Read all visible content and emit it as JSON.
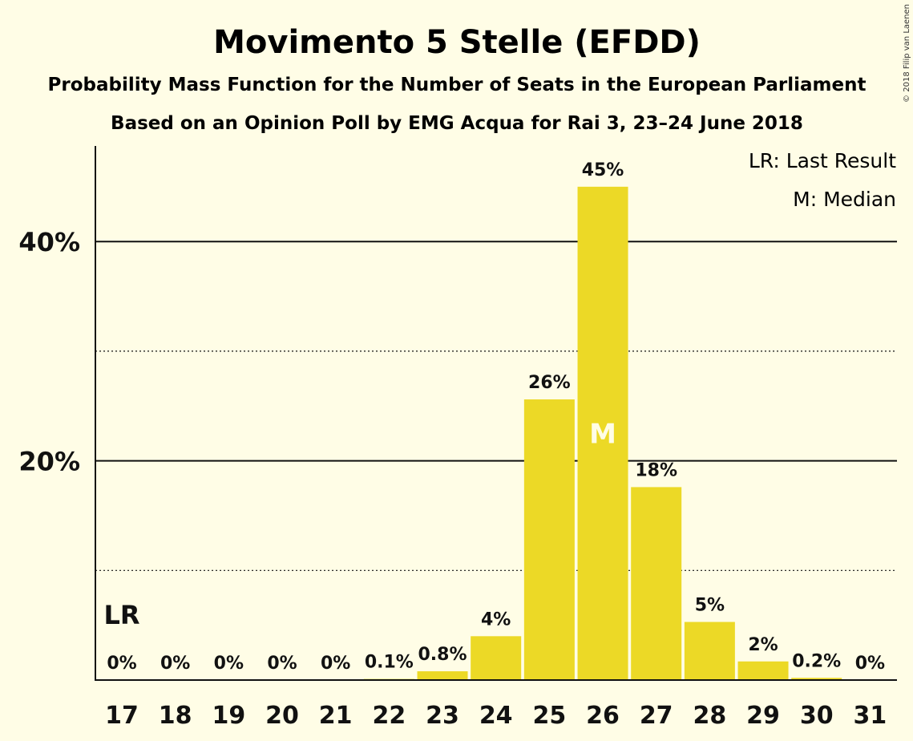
{
  "title": "Movimento 5 Stelle (EFDD)",
  "subtitle1": "Probability Mass Function for the Number of Seats in the European Parliament",
  "subtitle2": "Based on an Opinion Poll by EMG Acqua for Rai 3, 23–24 June 2018",
  "copyright": "© 2018 Filip van Laenen",
  "legend": {
    "last_result": "LR: Last Result",
    "median": "M: Median"
  },
  "markers": {
    "last_result": "LR",
    "median": "M"
  },
  "colors": {
    "bar": "#ECD926",
    "background": "#FFFDE6",
    "text": "#111111"
  },
  "chart_data": {
    "type": "bar",
    "categories": [
      "17",
      "18",
      "19",
      "20",
      "21",
      "22",
      "23",
      "24",
      "25",
      "26",
      "27",
      "28",
      "29",
      "30",
      "31"
    ],
    "values": [
      0,
      0,
      0,
      0,
      0,
      0.1,
      0.8,
      4,
      25.6,
      45,
      17.6,
      5.3,
      1.7,
      0.2,
      0
    ],
    "data_labels": [
      "0%",
      "0%",
      "0%",
      "0%",
      "0%",
      "0.1%",
      "0.8%",
      "4%",
      "26%",
      "45%",
      "18%",
      "5%",
      "2%",
      "0.2%",
      "0%"
    ],
    "ylim": [
      0,
      49
    ],
    "yticks": [
      20,
      40
    ],
    "ytick_labels": [
      "20%",
      "40%"
    ],
    "minor_gridlines": [
      10,
      30
    ],
    "last_result_seat": "17",
    "median_seat": "26",
    "legend_position": "top-right"
  }
}
